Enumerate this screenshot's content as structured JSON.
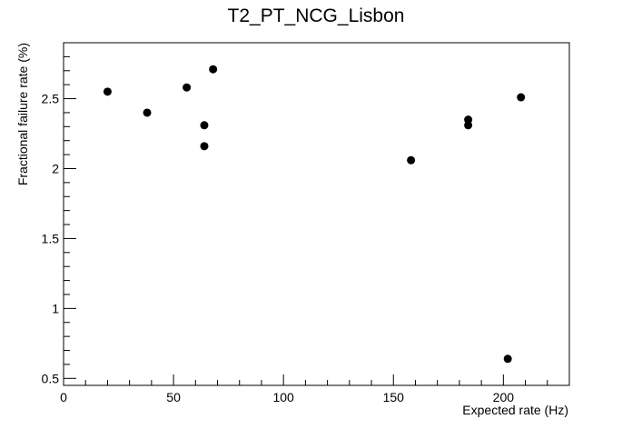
{
  "chart_data": {
    "type": "scatter",
    "title": "T2_PT_NCG_Lisbon",
    "xlabel": "Expected rate (Hz)",
    "ylabel": "Fractional failure rate (%)",
    "xlim": [
      0,
      230
    ],
    "ylim": [
      0.45,
      2.9
    ],
    "grid": false,
    "x_ticks": [
      0,
      50,
      100,
      150,
      200
    ],
    "y_ticks": [
      0.5,
      1,
      1.5,
      2,
      2.5
    ],
    "x_tick_labels": [
      "0",
      "50",
      "100",
      "150",
      "200"
    ],
    "y_tick_labels": [
      "0.5",
      "1",
      "1.5",
      "2",
      "2.5"
    ],
    "series": [
      {
        "points": [
          {
            "x": 20,
            "y": 2.55
          },
          {
            "x": 38,
            "y": 2.4
          },
          {
            "x": 56,
            "y": 2.58
          },
          {
            "x": 64,
            "y": 2.31
          },
          {
            "x": 64,
            "y": 2.16
          },
          {
            "x": 68,
            "y": 2.71
          },
          {
            "x": 158,
            "y": 2.06
          },
          {
            "x": 184,
            "y": 2.35
          },
          {
            "x": 184,
            "y": 2.31
          },
          {
            "x": 202,
            "y": 0.64
          },
          {
            "x": 208,
            "y": 2.51
          }
        ],
        "color": "#000000"
      }
    ]
  }
}
